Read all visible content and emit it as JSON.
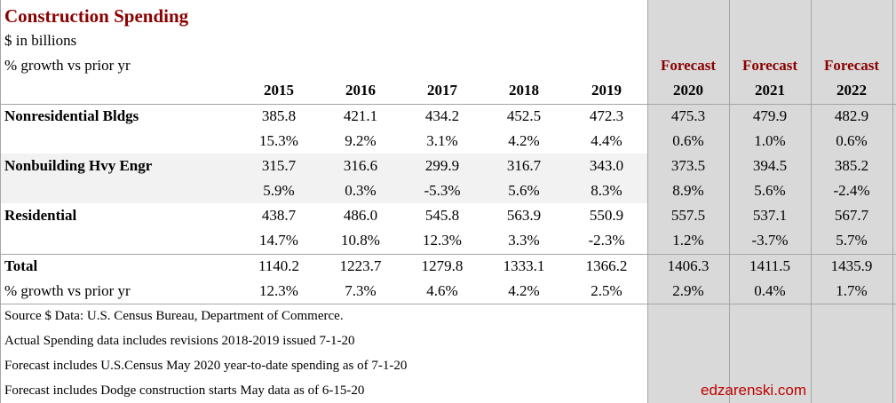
{
  "title": "Construction Spending",
  "subtitle_units": "$ in billions",
  "subtitle_growth": "% growth vs prior yr",
  "forecast_label": "Forecast",
  "years": [
    "2015",
    "2016",
    "2017",
    "2018",
    "2019",
    "2020",
    "2021",
    "2022"
  ],
  "forecast_years": [
    "2020",
    "2021",
    "2022"
  ],
  "colors": {
    "title": "#8b0000",
    "forecast_bg": "#d9d9d9",
    "band": "#f2f2f2",
    "site": "#c00000"
  },
  "chart_data": {
    "type": "table",
    "title": "Construction Spending",
    "columns": [
      "2015",
      "2016",
      "2017",
      "2018",
      "2019",
      "2020",
      "2021",
      "2022"
    ],
    "rows": [
      {
        "label": "Nonresidential Bldgs",
        "values": [
          "385.8",
          "421.1",
          "434.2",
          "452.5",
          "472.3",
          "475.3",
          "479.9",
          "482.9"
        ],
        "growth": [
          "15.3%",
          "9.2%",
          "3.1%",
          "4.2%",
          "4.4%",
          "0.6%",
          "1.0%",
          "0.6%"
        ],
        "band": false
      },
      {
        "label": "Nonbuilding Hvy Engr",
        "values": [
          "315.7",
          "316.6",
          "299.9",
          "316.7",
          "343.0",
          "373.5",
          "394.5",
          "385.2"
        ],
        "growth": [
          "5.9%",
          "0.3%",
          "-5.3%",
          "5.6%",
          "8.3%",
          "8.9%",
          "5.6%",
          "-2.4%"
        ],
        "band": true
      },
      {
        "label": "Residential",
        "values": [
          "438.7",
          "486.0",
          "545.8",
          "563.9",
          "550.9",
          "557.5",
          "537.1",
          "567.7"
        ],
        "growth": [
          "14.7%",
          "10.8%",
          "12.3%",
          "3.3%",
          "-2.3%",
          "1.2%",
          "-3.7%",
          "5.7%"
        ],
        "band": false
      }
    ],
    "total": {
      "label": "Total",
      "values": [
        "1140.2",
        "1223.7",
        "1279.8",
        "1333.1",
        "1366.2",
        "1406.3",
        "1411.5",
        "1435.9"
      ],
      "growth_label": "% growth vs prior yr",
      "growth": [
        "12.3%",
        "7.3%",
        "4.6%",
        "4.2%",
        "2.5%",
        "2.9%",
        "0.4%",
        "1.7%"
      ]
    }
  },
  "notes": [
    "Source $ Data: U.S. Census Bureau, Department of Commerce.",
    "Actual Spending data includes revisions 2018-2019 issued 7-1-20",
    "Forecast includes U.S.Census May 2020 year-to-date spending as of 7-1-20",
    "Forecast includes Dodge construction starts May data as of 6-15-20"
  ],
  "watermark": "edzarenski.com"
}
